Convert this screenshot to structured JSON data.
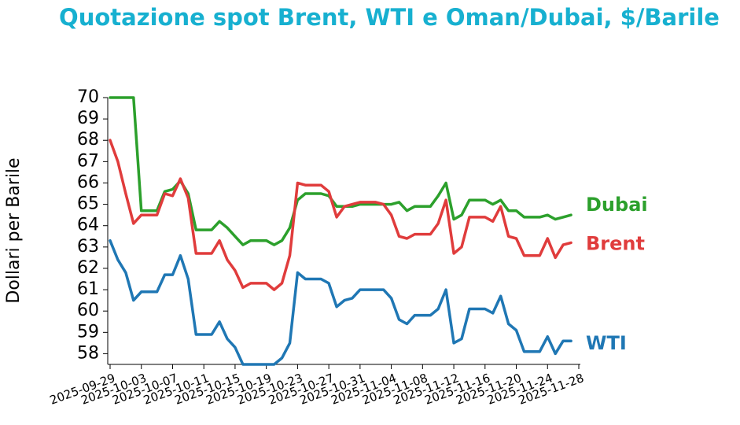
{
  "chart_data": {
    "type": "line",
    "title": "Quotazione spot Brent, WTI e Oman/Dubai, $/Barile",
    "y_label": "Dollari per Barile",
    "x": [
      "2025-09-29",
      "2025-09-30",
      "2025-10-01",
      "2025-10-02",
      "2025-10-03",
      "2025-10-04",
      "2025-10-05",
      "2025-10-06",
      "2025-10-07",
      "2025-10-08",
      "2025-10-09",
      "2025-10-10",
      "2025-10-11",
      "2025-10-12",
      "2025-10-13",
      "2025-10-14",
      "2025-10-15",
      "2025-10-16",
      "2025-10-17",
      "2025-10-18",
      "2025-10-19",
      "2025-10-20",
      "2025-10-21",
      "2025-10-22",
      "2025-10-23",
      "2025-10-24",
      "2025-10-25",
      "2025-10-26",
      "2025-10-27",
      "2025-10-28",
      "2025-10-29",
      "2025-10-30",
      "2025-10-31",
      "2025-11-01",
      "2025-11-02",
      "2025-11-03",
      "2025-11-04",
      "2025-11-05",
      "2025-11-06",
      "2025-11-07",
      "2025-11-08",
      "2025-11-09",
      "2025-11-10",
      "2025-11-11",
      "2025-11-12",
      "2025-11-13",
      "2025-11-14",
      "2025-11-15",
      "2025-11-16",
      "2025-11-17",
      "2025-11-18",
      "2025-11-19",
      "2025-11-20",
      "2025-11-21",
      "2025-11-22",
      "2025-11-23",
      "2025-11-24",
      "2025-11-25",
      "2025-11-26",
      "2025-11-27"
    ],
    "series": [
      {
        "name": "Dubai",
        "color": "#2ca02c",
        "values": [
          70,
          70,
          70,
          70,
          64.7,
          64.7,
          64.7,
          65.6,
          65.7,
          66.1,
          65.5,
          63.8,
          63.8,
          63.8,
          64.2,
          63.9,
          63.5,
          63.1,
          63.3,
          63.3,
          63.3,
          63.1,
          63.3,
          63.9,
          65.2,
          65.5,
          65.5,
          65.5,
          65.4,
          64.9,
          64.9,
          64.9,
          65.0,
          65.0,
          65.0,
          65.0,
          65.0,
          65.1,
          64.7,
          64.9,
          64.9,
          64.9,
          65.4,
          66.0,
          64.3,
          64.5,
          65.2,
          65.2,
          65.2,
          65.0,
          65.2,
          64.7,
          64.7,
          64.4,
          64.4,
          64.4,
          64.5,
          64.3,
          64.4,
          64.5
        ]
      },
      {
        "name": "Brent",
        "color": "#e03c3c",
        "values": [
          68,
          67,
          65.5,
          64.1,
          64.5,
          64.5,
          64.5,
          65.5,
          65.4,
          66.2,
          65.3,
          62.7,
          62.7,
          62.7,
          63.3,
          62.4,
          61.9,
          61.1,
          61.3,
          61.3,
          61.3,
          61.0,
          61.3,
          62.6,
          66.0,
          65.9,
          65.9,
          65.9,
          65.6,
          64.4,
          64.9,
          65.0,
          65.1,
          65.1,
          65.1,
          65.0,
          64.5,
          63.5,
          63.4,
          63.6,
          63.6,
          63.6,
          64.1,
          65.2,
          62.7,
          63.0,
          64.4,
          64.4,
          64.4,
          64.2,
          64.9,
          63.5,
          63.4,
          62.6,
          62.6,
          62.6,
          63.4,
          62.5,
          63.1,
          63.2
        ]
      },
      {
        "name": "WTI",
        "color": "#1f77b4",
        "values": [
          63.3,
          62.4,
          61.8,
          60.5,
          60.9,
          60.9,
          60.9,
          61.7,
          61.7,
          62.6,
          61.5,
          58.9,
          58.9,
          58.9,
          59.5,
          58.7,
          58.3,
          57.5,
          57.5,
          57.5,
          57.5,
          57.5,
          57.8,
          58.5,
          61.8,
          61.5,
          61.5,
          61.5,
          61.3,
          60.2,
          60.5,
          60.6,
          61.0,
          61.0,
          61.0,
          61.0,
          60.6,
          59.6,
          59.4,
          59.8,
          59.8,
          59.8,
          60.1,
          61.0,
          58.5,
          58.7,
          60.1,
          60.1,
          60.1,
          59.9,
          60.7,
          59.4,
          59.1,
          58.1,
          58.1,
          58.1,
          58.8,
          58.0,
          58.6,
          58.6
        ]
      }
    ],
    "xlim": [
      "2025-09-29",
      "2025-11-28"
    ],
    "xticks": [
      "2025-09-29",
      "2025-10-03",
      "2025-10-07",
      "2025-10-11",
      "2025-10-15",
      "2025-10-19",
      "2025-10-23",
      "2025-10-27",
      "2025-10-31",
      "2025-11-04",
      "2025-11-08",
      "2025-11-12",
      "2025-11-16",
      "2025-11-20",
      "2025-11-24",
      "2025-11-28"
    ],
    "ylim": [
      57.5,
      70
    ],
    "yticks": [
      58,
      59,
      60,
      61,
      62,
      63,
      64,
      65,
      66,
      67,
      68,
      69,
      70
    ]
  }
}
